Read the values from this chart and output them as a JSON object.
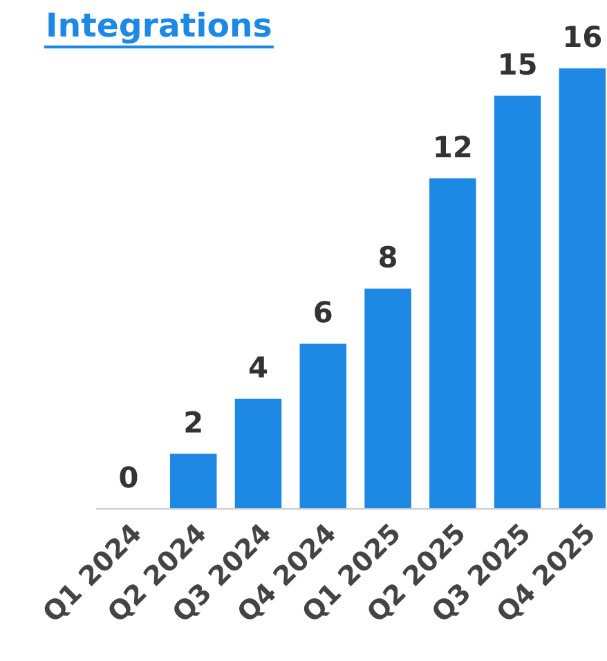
{
  "chart_data": {
    "type": "bar",
    "title": "Integrations",
    "categories": [
      "Q1 2024",
      "Q2 2024",
      "Q3 2024",
      "Q4 2024",
      "Q1 2025",
      "Q2 2025",
      "Q3 2025",
      "Q4 2025"
    ],
    "values": [
      0,
      2,
      4,
      6,
      8,
      12,
      15,
      16
    ],
    "color": "#1e88e5",
    "data_labels": true,
    "grid": false,
    "legend": false
  }
}
